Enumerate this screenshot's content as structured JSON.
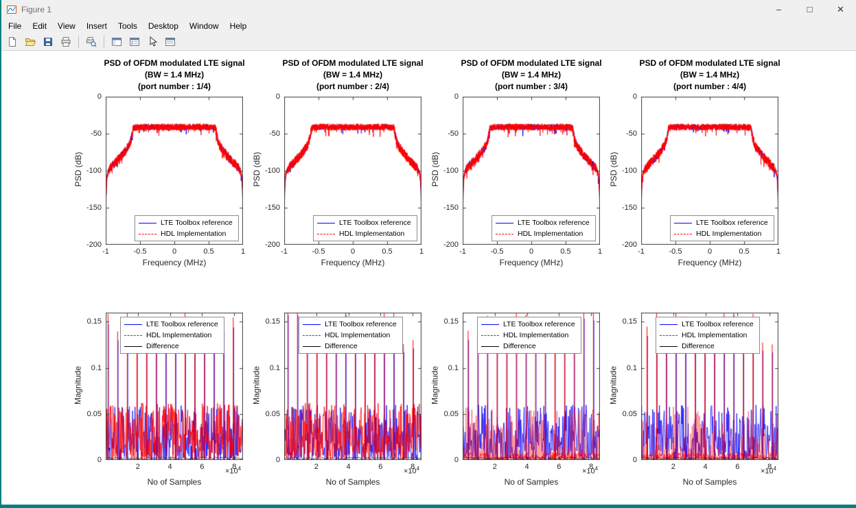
{
  "window": {
    "title": "Figure 1",
    "controls": {
      "minimize": "–",
      "maximize": "□",
      "close": "✕"
    }
  },
  "colors": {
    "titlebar_bg": "#f0f0f0",
    "figure_bg": "#ffffff",
    "desktop_edge": "#008080",
    "reference_line": "#0000ff",
    "hdl_line": "#ff0000",
    "difference_line": "#000000"
  },
  "menu": {
    "items": [
      "File",
      "Edit",
      "View",
      "Insert",
      "Tools",
      "Desktop",
      "Window",
      "Help"
    ]
  },
  "toolbar": {
    "icons": [
      "new-figure",
      "open-file",
      "save-figure",
      "print-figure",
      "print-preview",
      "figure-palette",
      "plot-browser",
      "edit-plot",
      "property-editor"
    ]
  },
  "chart_data": [
    {
      "type": "line",
      "subplot": "top row, column 1",
      "title_lines": [
        "PSD of OFDM modulated LTE signal",
        "(BW = 1.4 MHz)",
        "(port number : 1/4)"
      ],
      "xlabel": "Frequency (MHz)",
      "ylabel": "PSD (dB)",
      "xlim": [
        -1,
        1
      ],
      "ylim": [
        -200,
        0
      ],
      "xticks": [
        -1,
        -0.5,
        0,
        0.5,
        1
      ],
      "xtick_labels": [
        "-1",
        "-0.5",
        "0",
        "0.5",
        "1"
      ],
      "yticks": [
        0,
        -50,
        -100,
        -150,
        -200
      ],
      "ytick_labels": [
        "0",
        "-50",
        "-100",
        "-150",
        "-200"
      ],
      "legend_position": "south-inside",
      "series": [
        {
          "name": "LTE Toolbox reference",
          "color": "#0000ff",
          "style": "solid"
        },
        {
          "name": "HDL Implementation",
          "color": "#ff0000",
          "style": "dashed"
        }
      ],
      "envelope": {
        "x_MHz": [
          -1.0,
          -0.995,
          -0.98,
          -0.96,
          -0.93,
          -0.89,
          -0.84,
          -0.78,
          -0.72,
          -0.66,
          -0.63,
          -0.615,
          -0.6,
          -0.5,
          -0.4,
          -0.3,
          -0.2,
          -0.1,
          0,
          0.1,
          0.2,
          0.3,
          0.4,
          0.5,
          0.6,
          0.615,
          0.63,
          0.66,
          0.72,
          0.78,
          0.84,
          0.89,
          0.93,
          0.96,
          0.98,
          0.995,
          1.0
        ],
        "y_dB": [
          -200,
          -130,
          -107,
          -100,
          -96,
          -92,
          -87,
          -81,
          -74,
          -66,
          -58,
          -50,
          -42,
          -41,
          -41,
          -41,
          -41,
          -41,
          -41,
          -41,
          -41,
          -41,
          -41,
          -41,
          -42,
          -50,
          -58,
          -66,
          -74,
          -81,
          -87,
          -92,
          -96,
          -100,
          -107,
          -130,
          -200
        ]
      },
      "noise_band_dB": 8,
      "note": "Blue reference and red dashed HDL curves visually overlap"
    },
    {
      "type": "line",
      "subplot": "top row, column 2",
      "title_lines": [
        "PSD of OFDM modulated LTE signal",
        "(BW = 1.4 MHz)",
        "(port number : 2/4)"
      ],
      "xlabel": "Frequency (MHz)",
      "ylabel": "PSD (dB)",
      "xlim": [
        -1,
        1
      ],
      "ylim": [
        -200,
        0
      ],
      "xticks": [
        -1,
        -0.5,
        0,
        0.5,
        1
      ],
      "xtick_labels": [
        "-1",
        "-0.5",
        "0",
        "0.5",
        "1"
      ],
      "yticks": [
        0,
        -50,
        -100,
        -150,
        -200
      ],
      "ytick_labels": [
        "0",
        "-50",
        "-100",
        "-150",
        "-200"
      ],
      "legend_position": "south-inside",
      "series": [
        {
          "name": "LTE Toolbox reference",
          "color": "#0000ff",
          "style": "solid"
        },
        {
          "name": "HDL Implementation",
          "color": "#ff0000",
          "style": "dashed"
        }
      ],
      "envelope": {
        "x_MHz": [
          -1.0,
          -0.995,
          -0.98,
          -0.96,
          -0.93,
          -0.89,
          -0.84,
          -0.78,
          -0.72,
          -0.66,
          -0.63,
          -0.615,
          -0.6,
          -0.5,
          -0.4,
          -0.3,
          -0.2,
          -0.1,
          0,
          0.1,
          0.2,
          0.3,
          0.4,
          0.5,
          0.6,
          0.615,
          0.63,
          0.66,
          0.72,
          0.78,
          0.84,
          0.89,
          0.93,
          0.96,
          0.98,
          0.995,
          1.0
        ],
        "y_dB": [
          -200,
          -130,
          -107,
          -100,
          -96,
          -92,
          -87,
          -81,
          -74,
          -66,
          -58,
          -50,
          -42,
          -41,
          -41,
          -41,
          -41,
          -41,
          -41,
          -41,
          -41,
          -41,
          -41,
          -41,
          -42,
          -50,
          -58,
          -66,
          -74,
          -81,
          -87,
          -92,
          -96,
          -100,
          -107,
          -130,
          -200
        ]
      },
      "noise_band_dB": 8,
      "note": "Blue reference and red dashed HDL curves visually overlap"
    },
    {
      "type": "line",
      "subplot": "top row, column 3",
      "title_lines": [
        "PSD of OFDM modulated LTE signal",
        "(BW = 1.4 MHz)",
        "(port number : 3/4)"
      ],
      "xlabel": "Frequency (MHz)",
      "ylabel": "PSD (dB)",
      "xlim": [
        -1,
        1
      ],
      "ylim": [
        -200,
        0
      ],
      "xticks": [
        -1,
        -0.5,
        0,
        0.5,
        1
      ],
      "xtick_labels": [
        "-1",
        "-0.5",
        "0",
        "0.5",
        "1"
      ],
      "yticks": [
        0,
        -50,
        -100,
        -150,
        -200
      ],
      "ytick_labels": [
        "0",
        "-50",
        "-100",
        "-150",
        "-200"
      ],
      "legend_position": "south-inside",
      "series": [
        {
          "name": "LTE Toolbox reference",
          "color": "#0000ff",
          "style": "solid"
        },
        {
          "name": "HDL Implementation",
          "color": "#ff0000",
          "style": "dashed"
        }
      ],
      "envelope": {
        "x_MHz": [
          -1.0,
          -0.995,
          -0.98,
          -0.96,
          -0.93,
          -0.89,
          -0.84,
          -0.78,
          -0.72,
          -0.66,
          -0.63,
          -0.615,
          -0.6,
          -0.5,
          -0.4,
          -0.3,
          -0.2,
          -0.1,
          0,
          0.1,
          0.2,
          0.3,
          0.4,
          0.5,
          0.6,
          0.615,
          0.63,
          0.66,
          0.72,
          0.78,
          0.84,
          0.89,
          0.93,
          0.96,
          0.98,
          0.995,
          1.0
        ],
        "y_dB": [
          -200,
          -130,
          -107,
          -100,
          -96,
          -92,
          -87,
          -81,
          -74,
          -66,
          -58,
          -50,
          -42,
          -41,
          -41,
          -41,
          -41,
          -41,
          -41,
          -41,
          -41,
          -41,
          -41,
          -41,
          -42,
          -50,
          -58,
          -66,
          -74,
          -81,
          -87,
          -92,
          -96,
          -100,
          -107,
          -130,
          -200
        ]
      },
      "noise_band_dB": 8,
      "note": "Blue reference and red dashed HDL curves visually overlap"
    },
    {
      "type": "line",
      "subplot": "top row, column 4",
      "title_lines": [
        "PSD of OFDM modulated LTE signal",
        "(BW = 1.4 MHz)",
        "(port number : 4/4)"
      ],
      "xlabel": "Frequency (MHz)",
      "ylabel": "PSD (dB)",
      "xlim": [
        -1,
        1
      ],
      "ylim": [
        -200,
        0
      ],
      "xticks": [
        -1,
        -0.5,
        0,
        0.5,
        1
      ],
      "xtick_labels": [
        "-1",
        "-0.5",
        "0",
        "0.5",
        "1"
      ],
      "yticks": [
        0,
        -50,
        -100,
        -150,
        -200
      ],
      "ytick_labels": [
        "0",
        "-50",
        "-100",
        "-150",
        "-200"
      ],
      "legend_position": "south-inside",
      "series": [
        {
          "name": "LTE Toolbox reference",
          "color": "#0000ff",
          "style": "solid"
        },
        {
          "name": "HDL Implementation",
          "color": "#ff0000",
          "style": "dashed"
        }
      ],
      "envelope": {
        "x_MHz": [
          -1.0,
          -0.995,
          -0.98,
          -0.96,
          -0.93,
          -0.89,
          -0.84,
          -0.78,
          -0.72,
          -0.66,
          -0.63,
          -0.615,
          -0.6,
          -0.5,
          -0.4,
          -0.3,
          -0.2,
          -0.1,
          0,
          0.1,
          0.2,
          0.3,
          0.4,
          0.5,
          0.6,
          0.615,
          0.63,
          0.66,
          0.72,
          0.78,
          0.84,
          0.89,
          0.93,
          0.96,
          0.98,
          0.995,
          1.0
        ],
        "y_dB": [
          -200,
          -130,
          -107,
          -100,
          -96,
          -92,
          -87,
          -81,
          -74,
          -66,
          -58,
          -50,
          -42,
          -41,
          -41,
          -41,
          -41,
          -41,
          -41,
          -41,
          -41,
          -41,
          -41,
          -41,
          -42,
          -50,
          -58,
          -66,
          -74,
          -81,
          -87,
          -92,
          -96,
          -100,
          -107,
          -130,
          -200
        ]
      },
      "noise_band_dB": 8,
      "note": "Blue reference and red dashed HDL curves visually overlap"
    },
    {
      "type": "line",
      "subplot": "bottom row, column 1",
      "title_lines": [],
      "xlabel": "No of Samples",
      "ylabel": "Magnitude",
      "x_multiplier_base": "×10",
      "x_multiplier_exp": "4",
      "xlim": [
        0,
        85500
      ],
      "ylim": [
        0,
        0.16
      ],
      "xticks": [
        20000,
        40000,
        60000,
        80000
      ],
      "xtick_labels": [
        "2",
        "4",
        "6",
        "8"
      ],
      "yticks": [
        0,
        0.05,
        0.1,
        0.15
      ],
      "ytick_labels": [
        "0",
        "0.05",
        "0.1",
        "0.15"
      ],
      "legend_position": "northwest-inside",
      "series": [
        {
          "name": "LTE Toolbox reference",
          "color": "#0000ff",
          "style": "solid"
        },
        {
          "name": "HDL Implementation",
          "color": "#ff0000",
          "style": "dashed"
        },
        {
          "name": "Difference",
          "color": "#000000",
          "style": "solid"
        }
      ],
      "noise_range": [
        0,
        0.06
      ],
      "spike_spacing_samples": 6000,
      "spike_peak": 0.16,
      "description": "Dense noise floor between 0 and ~0.06 with periodic tall spikes clipping near 0.15+; Difference trace ≈ 0"
    },
    {
      "type": "line",
      "subplot": "bottom row, column 2",
      "title_lines": [],
      "xlabel": "No of Samples",
      "ylabel": "Magnitude",
      "x_multiplier_base": "×10",
      "x_multiplier_exp": "4",
      "xlim": [
        0,
        85500
      ],
      "ylim": [
        0,
        0.16
      ],
      "xticks": [
        20000,
        40000,
        60000,
        80000
      ],
      "xtick_labels": [
        "2",
        "4",
        "6",
        "8"
      ],
      "yticks": [
        0,
        0.05,
        0.1,
        0.15
      ],
      "ytick_labels": [
        "0",
        "0.05",
        "0.1",
        "0.15"
      ],
      "legend_position": "northwest-inside",
      "series": [
        {
          "name": "LTE Toolbox reference",
          "color": "#0000ff",
          "style": "solid"
        },
        {
          "name": "HDL Implementation",
          "color": "#ff0000",
          "style": "dashed"
        },
        {
          "name": "Difference",
          "color": "#000000",
          "style": "solid"
        }
      ],
      "noise_range": [
        0,
        0.06
      ],
      "spike_spacing_samples": 6000,
      "spike_peak": 0.16,
      "description": "Dense noise floor between 0 and ~0.06 with periodic tall spikes clipping near 0.15+; Difference trace ≈ 0"
    },
    {
      "type": "line",
      "subplot": "bottom row, column 3",
      "title_lines": [],
      "xlabel": "No of Samples",
      "ylabel": "Magnitude",
      "x_multiplier_base": "×10",
      "x_multiplier_exp": "4",
      "xlim": [
        0,
        85500
      ],
      "ylim": [
        0,
        0.16
      ],
      "xticks": [
        20000,
        40000,
        60000,
        80000
      ],
      "xtick_labels": [
        "2",
        "4",
        "6",
        "8"
      ],
      "yticks": [
        0,
        0.05,
        0.1,
        0.15
      ],
      "ytick_labels": [
        "0",
        "0.05",
        "0.1",
        "0.15"
      ],
      "legend_position": "northwest-inside",
      "series": [
        {
          "name": "LTE Toolbox reference",
          "color": "#0000ff",
          "style": "solid"
        },
        {
          "name": "HDL Implementation",
          "color": "#ff0000",
          "style": "dashed"
        },
        {
          "name": "Difference",
          "color": "#000000",
          "style": "solid"
        }
      ],
      "noise_range": [
        0,
        0.06
      ],
      "spike_spacing_samples": 6000,
      "spike_peak": 0.16,
      "description": "Clustered noise bars between 0 and ~0.06 with periodic tall spikes clipping near 0.15+; Difference trace ≈ 0"
    },
    {
      "type": "line",
      "subplot": "bottom row, column 4",
      "title_lines": [],
      "xlabel": "No of Samples",
      "ylabel": "Magnitude",
      "x_multiplier_base": "×10",
      "x_multiplier_exp": "4",
      "xlim": [
        0,
        85500
      ],
      "ylim": [
        0,
        0.16
      ],
      "xticks": [
        20000,
        40000,
        60000,
        80000
      ],
      "xtick_labels": [
        "2",
        "4",
        "6",
        "8"
      ],
      "yticks": [
        0,
        0.05,
        0.1,
        0.15
      ],
      "ytick_labels": [
        "0",
        "0.05",
        "0.1",
        "0.15"
      ],
      "legend_position": "northwest-inside",
      "series": [
        {
          "name": "LTE Toolbox reference",
          "color": "#0000ff",
          "style": "solid"
        },
        {
          "name": "HDL Implementation",
          "color": "#ff0000",
          "style": "dashed"
        },
        {
          "name": "Difference",
          "color": "#000000",
          "style": "solid"
        }
      ],
      "noise_range": [
        0,
        0.06
      ],
      "spike_spacing_samples": 6000,
      "spike_peak": 0.16,
      "description": "Clustered noise bars between 0 and ~0.06 with periodic tall spikes clipping near 0.15+; Difference trace ≈ 0"
    }
  ]
}
